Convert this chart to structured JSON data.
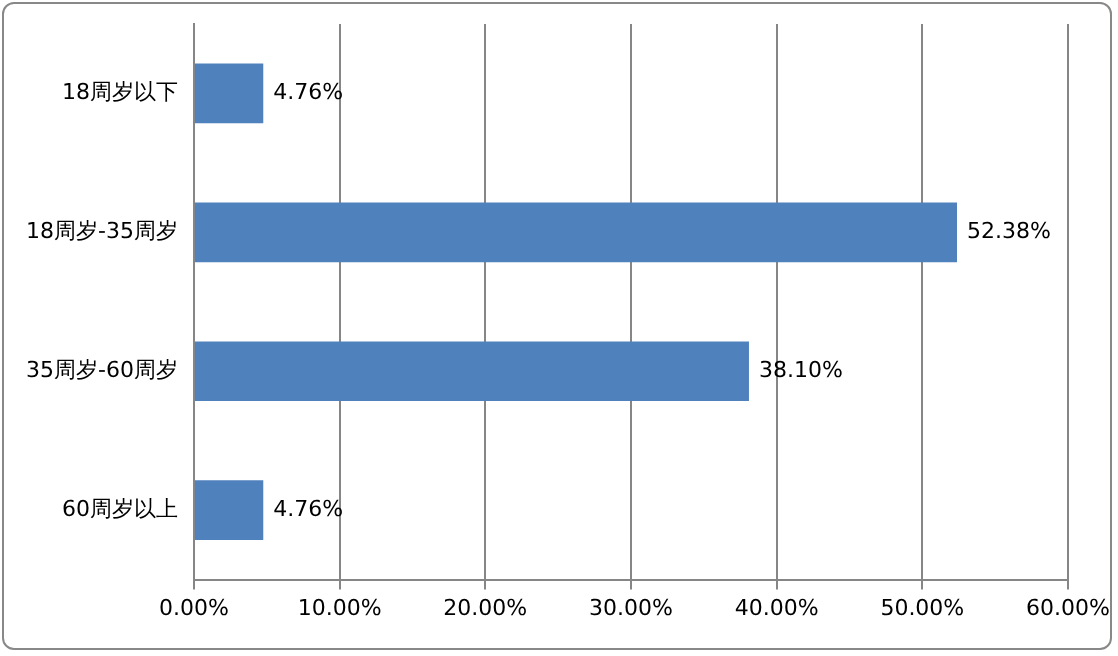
{
  "chart_data": {
    "type": "bar",
    "orientation": "horizontal",
    "categories": [
      "18周岁以下",
      "18周岁-35周岁",
      "35周岁-60周岁",
      "60周岁以上"
    ],
    "values": [
      4.76,
      52.38,
      38.1,
      4.76
    ],
    "color": "#4f81bd",
    "value_labels": [
      "4.76%",
      "52.38%",
      "38.10%",
      "4.76%"
    ],
    "xlim": [
      0,
      60
    ],
    "xticks": [
      {
        "value": 0,
        "label": "0.00%"
      },
      {
        "value": 10,
        "label": "10.00%"
      },
      {
        "value": 20,
        "label": "20.00%"
      },
      {
        "value": 30,
        "label": "30.00%"
      },
      {
        "value": 40,
        "label": "40.00%"
      },
      {
        "value": 50,
        "label": "50.00%"
      },
      {
        "value": 60,
        "label": "60.00%"
      }
    ],
    "grid": "x",
    "legend": false
  }
}
